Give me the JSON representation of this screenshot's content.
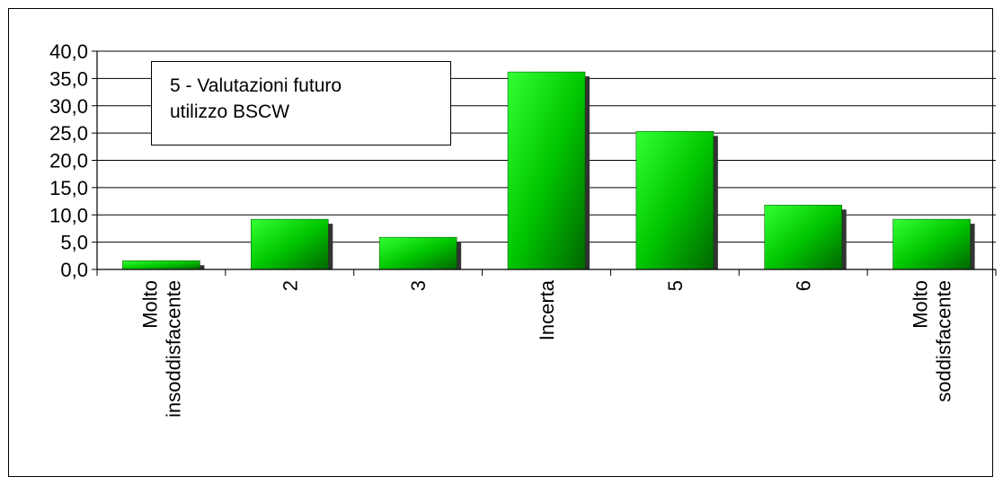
{
  "chart_data": {
    "type": "bar",
    "title_lines": [
      "5 - Valutazioni futuro",
      "utilizzo BSCW"
    ],
    "categories": [
      [
        "Molto",
        "insoddisfacente"
      ],
      [
        "2"
      ],
      [
        "3"
      ],
      [
        "Incerta"
      ],
      [
        "5"
      ],
      [
        "6"
      ],
      [
        "Molto",
        "soddisfacente"
      ]
    ],
    "values": [
      1.6,
      9.2,
      5.9,
      36.2,
      25.3,
      11.8,
      9.2
    ],
    "ylim": [
      0,
      40
    ],
    "yticks": [
      "0,0",
      "5,0",
      "10,0",
      "15,0",
      "20,0",
      "25,0",
      "30,0",
      "35,0",
      "40,0"
    ],
    "grid": true,
    "colors": {
      "bar_light": "#33ff33",
      "bar_dark": "#006600",
      "shadow": "#333333",
      "grid": "#000000"
    }
  }
}
